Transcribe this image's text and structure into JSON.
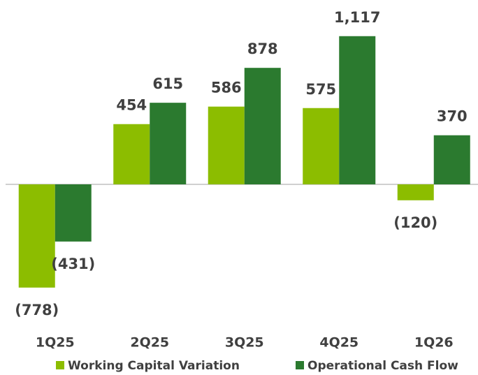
{
  "chart_data": {
    "type": "bar",
    "categories": [
      "1Q25",
      "2Q25",
      "3Q25",
      "4Q25",
      "1Q26"
    ],
    "series": [
      {
        "name": "Working Capital Variation",
        "color": "#8cbd00",
        "values": [
          -778,
          454,
          586,
          575,
          -120
        ],
        "value_labels": [
          "(778)",
          "454",
          "586",
          "575",
          "(120)"
        ]
      },
      {
        "name": "Operational Cash Flow",
        "color": "#2b7a2f",
        "values": [
          -431,
          615,
          878,
          1117,
          370
        ],
        "value_labels": [
          "(431)",
          "615",
          "878",
          "1,117",
          "370"
        ]
      }
    ],
    "legend": "bottom"
  }
}
